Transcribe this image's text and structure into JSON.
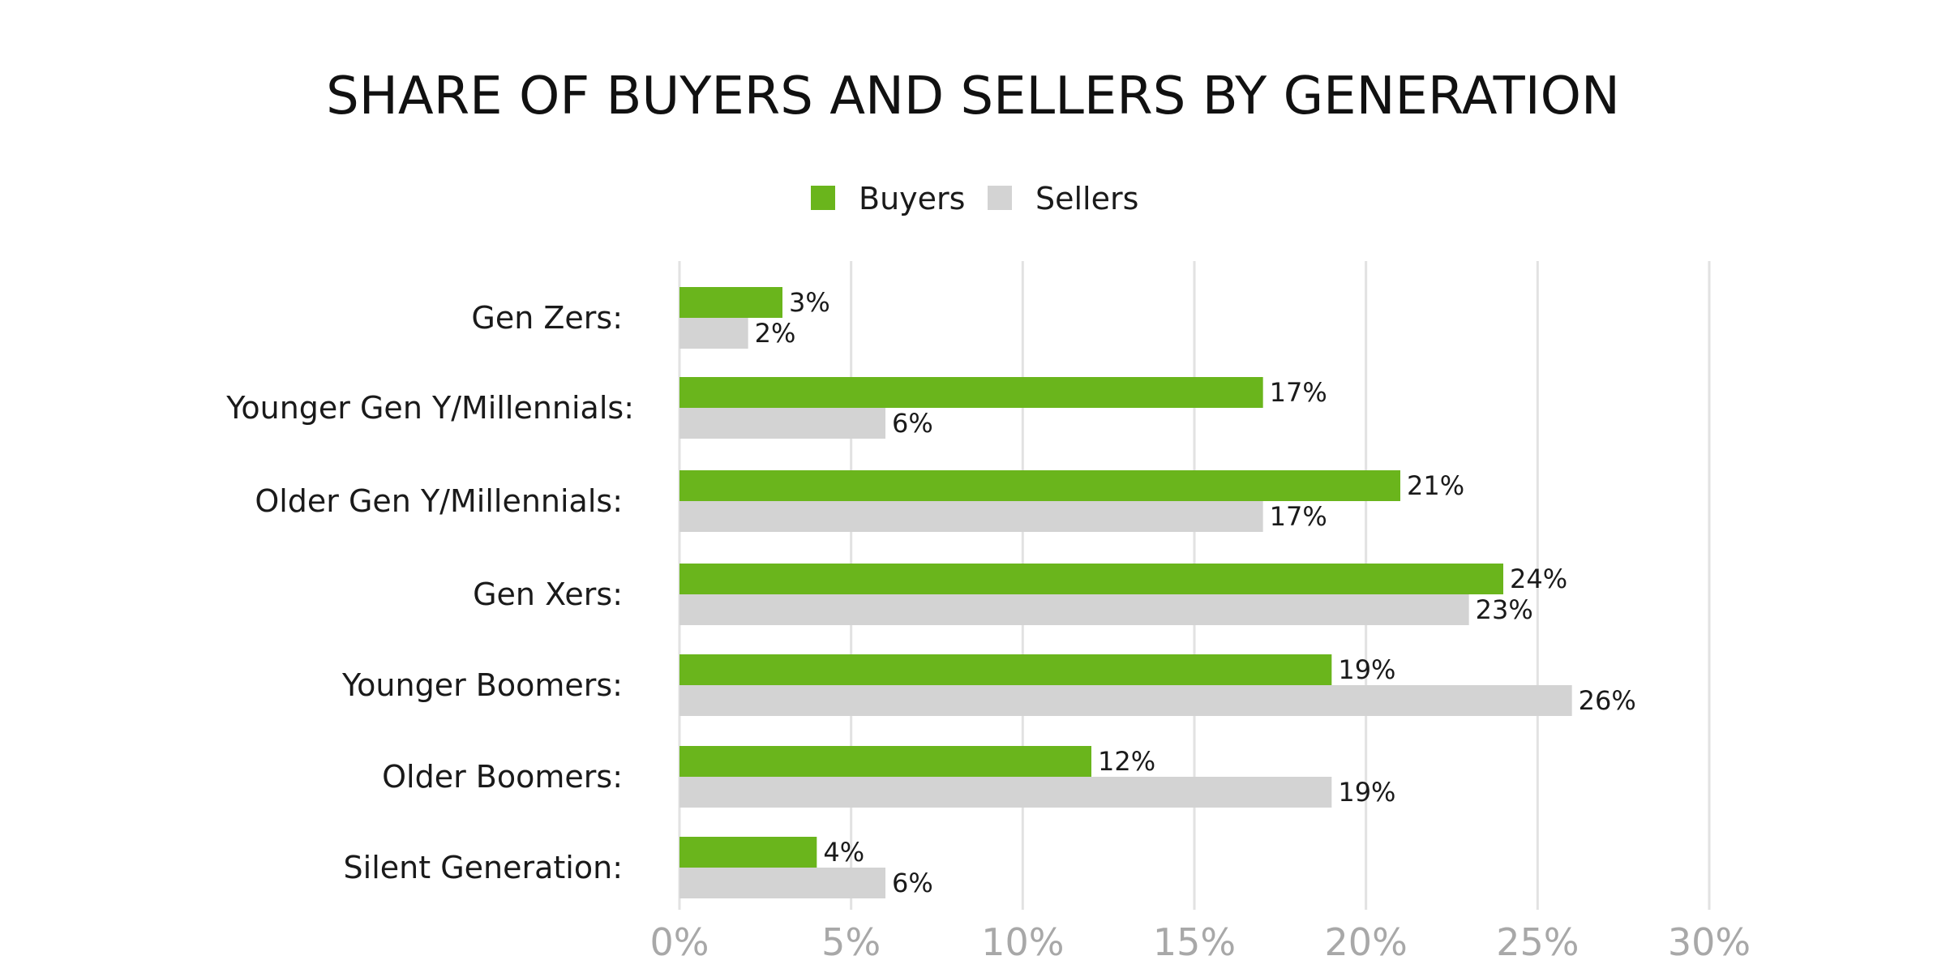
{
  "chart_data": {
    "type": "bar",
    "orientation": "horizontal",
    "title": "SHARE OF BUYERS AND SELLERS BY GENERATION",
    "categories": [
      "Gen Zers:",
      "Younger Gen Y/Millennials:",
      "Older Gen Y/Millennials:",
      "Gen Xers:",
      "Younger Boomers:",
      "Older Boomers:",
      "Silent Generation:"
    ],
    "series": [
      {
        "name": "Buyers",
        "color": "#6ab51c",
        "values": [
          3,
          17,
          21,
          24,
          19,
          12,
          4
        ],
        "labels": [
          "3%",
          "17%",
          "21%",
          "24%",
          "19%",
          "12%",
          "4%"
        ]
      },
      {
        "name": "Sellers",
        "color": "#d3d3d3",
        "values": [
          2,
          6,
          17,
          23,
          26,
          19,
          6
        ],
        "labels": [
          "2%",
          "6%",
          "17%",
          "23%",
          "26%",
          "19%",
          "6%"
        ]
      }
    ],
    "xlim": [
      0,
      30
    ],
    "xticks": [
      0,
      5,
      10,
      15,
      20,
      25,
      30
    ],
    "xtick_labels": [
      "0%",
      "5%",
      "10%",
      "15%",
      "20%",
      "25%",
      "30%"
    ],
    "grid": true,
    "legend_position": "top-center"
  }
}
